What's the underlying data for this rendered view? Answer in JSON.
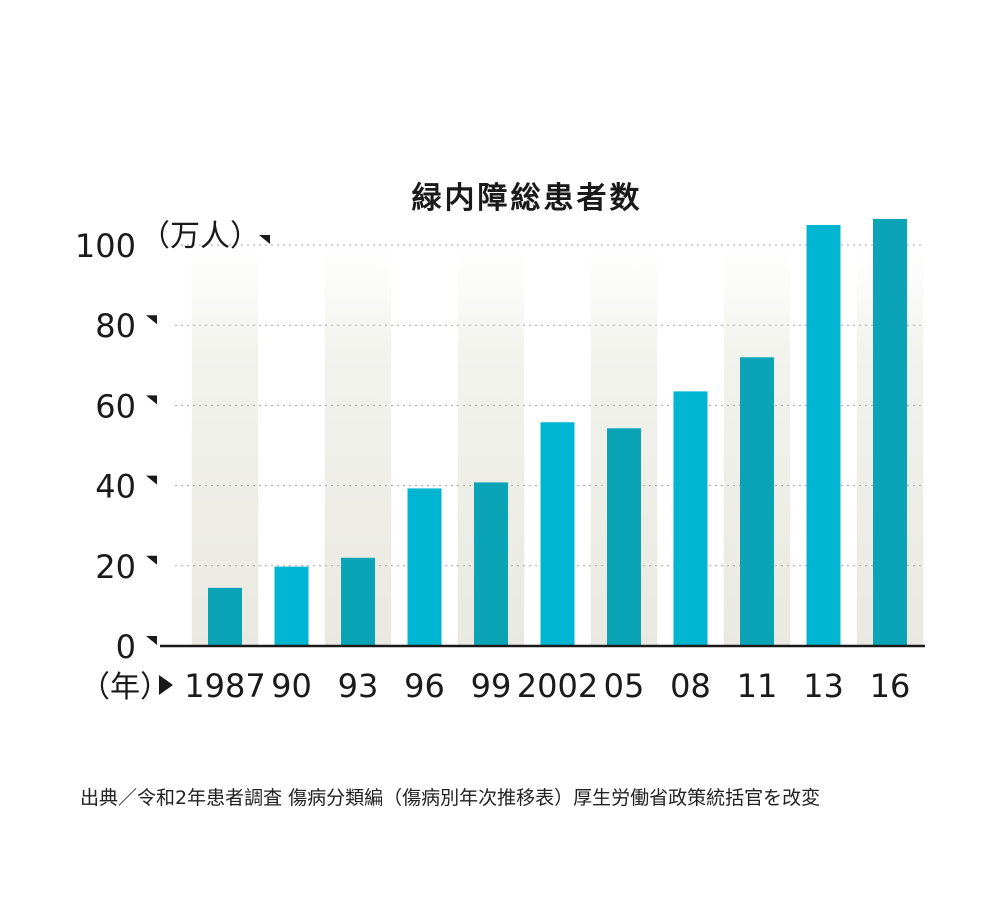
{
  "chart_data": {
    "type": "bar",
    "title": "緑内障総患者数",
    "ylabel_unit": "（万人）",
    "xlabel_unit": "（年）",
    "categories": [
      "1987",
      "90",
      "93",
      "96",
      "99",
      "2002",
      "05",
      "08",
      "11",
      "13",
      "16"
    ],
    "values": [
      14.5,
      19.8,
      22.0,
      39.3,
      40.8,
      55.8,
      54.3,
      63.5,
      72.0,
      105.0,
      106.5
    ],
    "yticks": [
      0,
      20,
      40,
      60,
      80,
      100
    ],
    "ylim": [
      0,
      107
    ],
    "grid": true,
    "colors": {
      "bar_dark": "#0ba4b7",
      "bar_light": "#00b5d2",
      "band": "#ecece4",
      "axis": "#1a1a1a",
      "grid": "#a8a8a8"
    }
  },
  "source": "出典／令和2年患者調査 傷病分類編（傷病別年次推移表）厚生労働省政策統括官を改変"
}
